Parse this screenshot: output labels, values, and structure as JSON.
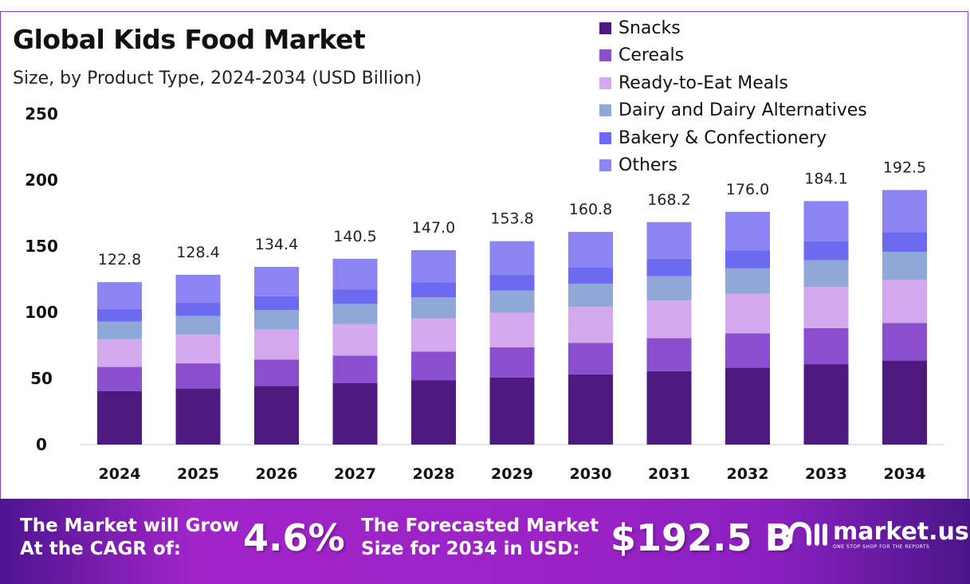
{
  "title": "Global Kids Food Market",
  "subtitle": "Size, by Product Type, 2024-2034 (USD Billion)",
  "chart_data": {
    "type": "bar",
    "stacked": true,
    "categories": [
      "2024",
      "2025",
      "2026",
      "2027",
      "2028",
      "2029",
      "2030",
      "2031",
      "2032",
      "2033",
      "2034"
    ],
    "ylim": [
      0,
      250
    ],
    "yticks": [
      0,
      50,
      100,
      150,
      200,
      250
    ],
    "grid": false,
    "legend_position": "top-right",
    "totals": [
      122.8,
      128.4,
      134.4,
      140.5,
      147.0,
      153.8,
      160.8,
      168.2,
      176.0,
      184.1,
      192.5
    ],
    "total_labels": [
      "122.8",
      "128.4",
      "134.4",
      "140.5",
      "147.0",
      "153.8",
      "160.8",
      "168.2",
      "176.0",
      "184.1",
      "192.5"
    ],
    "series": [
      {
        "name": "Snacks",
        "color": "#4e1a82",
        "values": [
          40.5,
          42.4,
          44.4,
          46.4,
          48.5,
          50.8,
          53.1,
          55.5,
          58.1,
          60.8,
          63.5
        ]
      },
      {
        "name": "Cereals",
        "color": "#8a4fcc",
        "values": [
          18.2,
          19.0,
          19.9,
          20.8,
          21.8,
          22.8,
          23.8,
          24.9,
          26.0,
          27.2,
          28.5
        ]
      },
      {
        "name": "Ready-to-Eat Meals",
        "color": "#d4a8ec",
        "values": [
          20.9,
          21.8,
          22.8,
          23.9,
          25.0,
          26.1,
          27.3,
          28.6,
          29.9,
          31.3,
          32.7
        ]
      },
      {
        "name": "Dairy and Dairy Alternatives",
        "color": "#8fa8d8",
        "values": [
          13.4,
          14.0,
          14.6,
          15.3,
          16.0,
          16.8,
          17.5,
          18.3,
          19.2,
          20.1,
          21.0
        ]
      },
      {
        "name": "Bakery & Confectionery",
        "color": "#6e6af0",
        "values": [
          9.6,
          10.0,
          10.5,
          11.0,
          11.5,
          12.0,
          12.5,
          13.1,
          13.7,
          14.4,
          15.0
        ]
      },
      {
        "name": "Others",
        "color": "#8c84f0",
        "values": [
          20.2,
          21.2,
          22.2,
          23.1,
          24.2,
          25.3,
          26.6,
          27.8,
          29.1,
          30.3,
          31.8
        ]
      }
    ]
  },
  "banner": {
    "cagr_label_1": "The Market will Grow",
    "cagr_label_2": "At the CAGR of:",
    "cagr_value": "4.6%",
    "forecast_label_1": "The Forecasted Market",
    "forecast_label_2": "Size for 2034 in USD:",
    "forecast_value": "$192.5 B",
    "logo_name": "market.us",
    "logo_tagline": "ONE STOP SHOP FOR THE REPORTS"
  }
}
